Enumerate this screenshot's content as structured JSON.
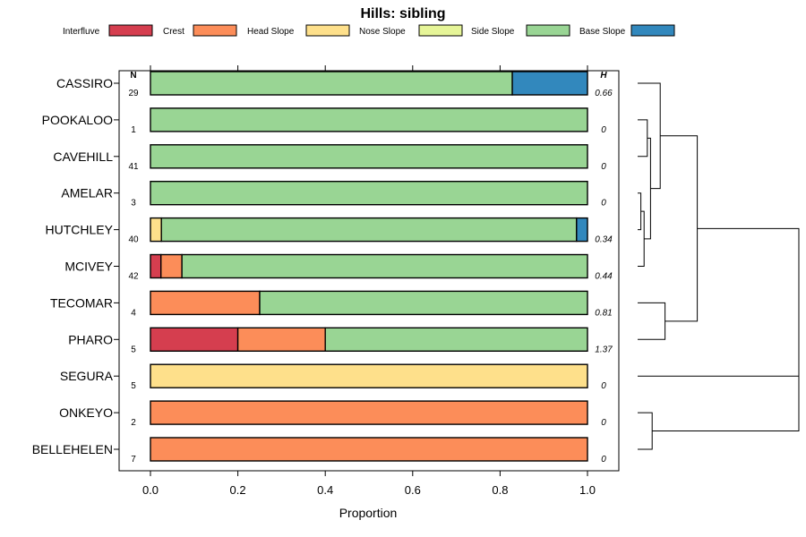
{
  "chart_data": {
    "type": "bar",
    "orientation": "horizontal",
    "stacked": true,
    "title": "Hills: sibling",
    "xlabel": "Proportion",
    "ylabel": "",
    "xlim": [
      0,
      1
    ],
    "x_ticks": [
      "0.0",
      "0.2",
      "0.4",
      "0.6",
      "0.8",
      "1.0"
    ],
    "legend_position": "top",
    "n_header": "N",
    "h_header": "H",
    "series": [
      {
        "name": "Interfluve",
        "color": "#d53e4f"
      },
      {
        "name": "Crest",
        "color": "#fc8d59"
      },
      {
        "name": "Head Slope",
        "color": "#fee08b"
      },
      {
        "name": "Nose Slope",
        "color": "#e6f598"
      },
      {
        "name": "Side Slope",
        "color": "#99d594"
      },
      {
        "name": "Base Slope",
        "color": "#3288bd"
      }
    ],
    "categories": [
      {
        "name": "CASSIRO",
        "n": "29",
        "h": "0.66",
        "values": [
          0,
          0,
          0,
          0,
          0.828,
          0.172
        ]
      },
      {
        "name": "POOKALOO",
        "n": "1",
        "h": "0",
        "values": [
          0,
          0,
          0,
          0,
          1,
          0
        ]
      },
      {
        "name": "CAVEHILL",
        "n": "41",
        "h": "0",
        "values": [
          0,
          0,
          0,
          0,
          1,
          0
        ]
      },
      {
        "name": "AMELAR",
        "n": "3",
        "h": "0",
        "values": [
          0,
          0,
          0,
          0,
          1,
          0
        ]
      },
      {
        "name": "HUTCHLEY",
        "n": "40",
        "h": "0.34",
        "values": [
          0,
          0,
          0.025,
          0,
          0.95,
          0.025
        ]
      },
      {
        "name": "MCIVEY",
        "n": "42",
        "h": "0.44",
        "values": [
          0.024,
          0.048,
          0,
          0,
          0.928,
          0
        ]
      },
      {
        "name": "TECOMAR",
        "n": "4",
        "h": "0.81",
        "values": [
          0,
          0.25,
          0,
          0,
          0.75,
          0
        ]
      },
      {
        "name": "PHARO",
        "n": "5",
        "h": "1.37",
        "values": [
          0.2,
          0.2,
          0,
          0,
          0.6,
          0
        ]
      },
      {
        "name": "SEGURA",
        "n": "5",
        "h": "0",
        "values": [
          0,
          0,
          1,
          0,
          0,
          0
        ]
      },
      {
        "name": "ONKEYO",
        "n": "2",
        "h": "0",
        "values": [
          0,
          1,
          0,
          0,
          0,
          0
        ]
      },
      {
        "name": "BELLEHELEN",
        "n": "7",
        "h": "0",
        "values": [
          0,
          1,
          0,
          0,
          0,
          0
        ]
      }
    ],
    "dendrogram": {
      "leaf_order": [
        "CASSIRO",
        "POOKALOO",
        "CAVEHILL",
        "AMELAR",
        "HUTCHLEY",
        "MCIVEY",
        "TECOMAR",
        "PHARO",
        "SEGURA",
        "ONKEYO",
        "BELLEHELEN"
      ],
      "merges": [
        {
          "a": "AMELAR",
          "b": "HUTCHLEY",
          "height": 0.02
        },
        {
          "a": "m0",
          "b": "MCIVEY",
          "height": 0.04
        },
        {
          "a": "POOKALOO",
          "b": "CAVEHILL",
          "height": 0.06
        },
        {
          "a": "m2",
          "b": "m1",
          "height": 0.08
        },
        {
          "a": "CASSIRO",
          "b": "m3",
          "height": 0.14
        },
        {
          "a": "TECOMAR",
          "b": "PHARO",
          "height": 0.17
        },
        {
          "a": "m4",
          "b": "m5",
          "height": 0.37
        },
        {
          "a": "ONKEYO",
          "b": "BELLEHELEN",
          "height": 0.09
        },
        {
          "a": "SEGURA",
          "b": "m7",
          "height": 1.0
        },
        {
          "a": "m6",
          "b": "m8",
          "height": 1.0
        }
      ]
    }
  }
}
